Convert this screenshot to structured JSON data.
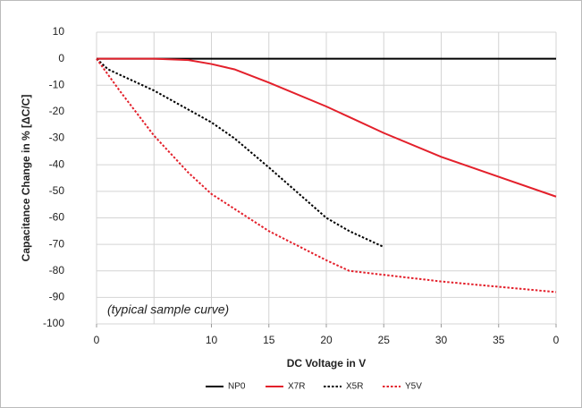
{
  "chart_data": {
    "type": "line",
    "y_label": "Capacitance Change in % [ΔC/C]",
    "x_label": "DC Voltage in V",
    "annotation": "(typical sample curve)",
    "xlim": [
      0,
      40
    ],
    "ylim": [
      -100,
      10
    ],
    "xticks": [
      0,
      10,
      15,
      20,
      25,
      30,
      35,
      {
        "value": 40,
        "label": "0"
      }
    ],
    "xgrid": [
      0,
      5,
      10,
      15,
      20,
      25,
      30,
      35,
      40
    ],
    "yticks": [
      10,
      0,
      -10,
      -20,
      -30,
      -40,
      -50,
      -60,
      -70,
      -80,
      -90,
      -100
    ],
    "grid": true,
    "legend": "bottom",
    "series": [
      {
        "name": "NP0",
        "color": "#000000",
        "dash": "solid",
        "x": [
          0,
          40
        ],
        "values": [
          0,
          0
        ]
      },
      {
        "name": "X7R",
        "color": "#e3202b",
        "dash": "solid",
        "x": [
          0,
          5,
          8,
          10,
          12,
          15,
          20,
          22,
          25,
          30,
          35,
          40
        ],
        "values": [
          0,
          0,
          -0.5,
          -2,
          -4,
          -9,
          -18,
          -22,
          -28,
          -37,
          -44.5,
          -52
        ]
      },
      {
        "name": "X5R",
        "color": "#000000",
        "dash": "dotted",
        "x": [
          0,
          1,
          5,
          10,
          12,
          15,
          20,
          22,
          25
        ],
        "values": [
          0,
          -4,
          -12,
          -24,
          -30,
          -41,
          -60,
          -65,
          -71
        ]
      },
      {
        "name": "Y5V",
        "color": "#e3202b",
        "dash": "dotted",
        "x": [
          0,
          2,
          5,
          8,
          10,
          15,
          20,
          22,
          25,
          30,
          35,
          40
        ],
        "values": [
          0,
          -12,
          -29,
          -43,
          -51,
          -65,
          -76,
          -80,
          -81.5,
          -84,
          -86,
          -88
        ]
      }
    ]
  }
}
